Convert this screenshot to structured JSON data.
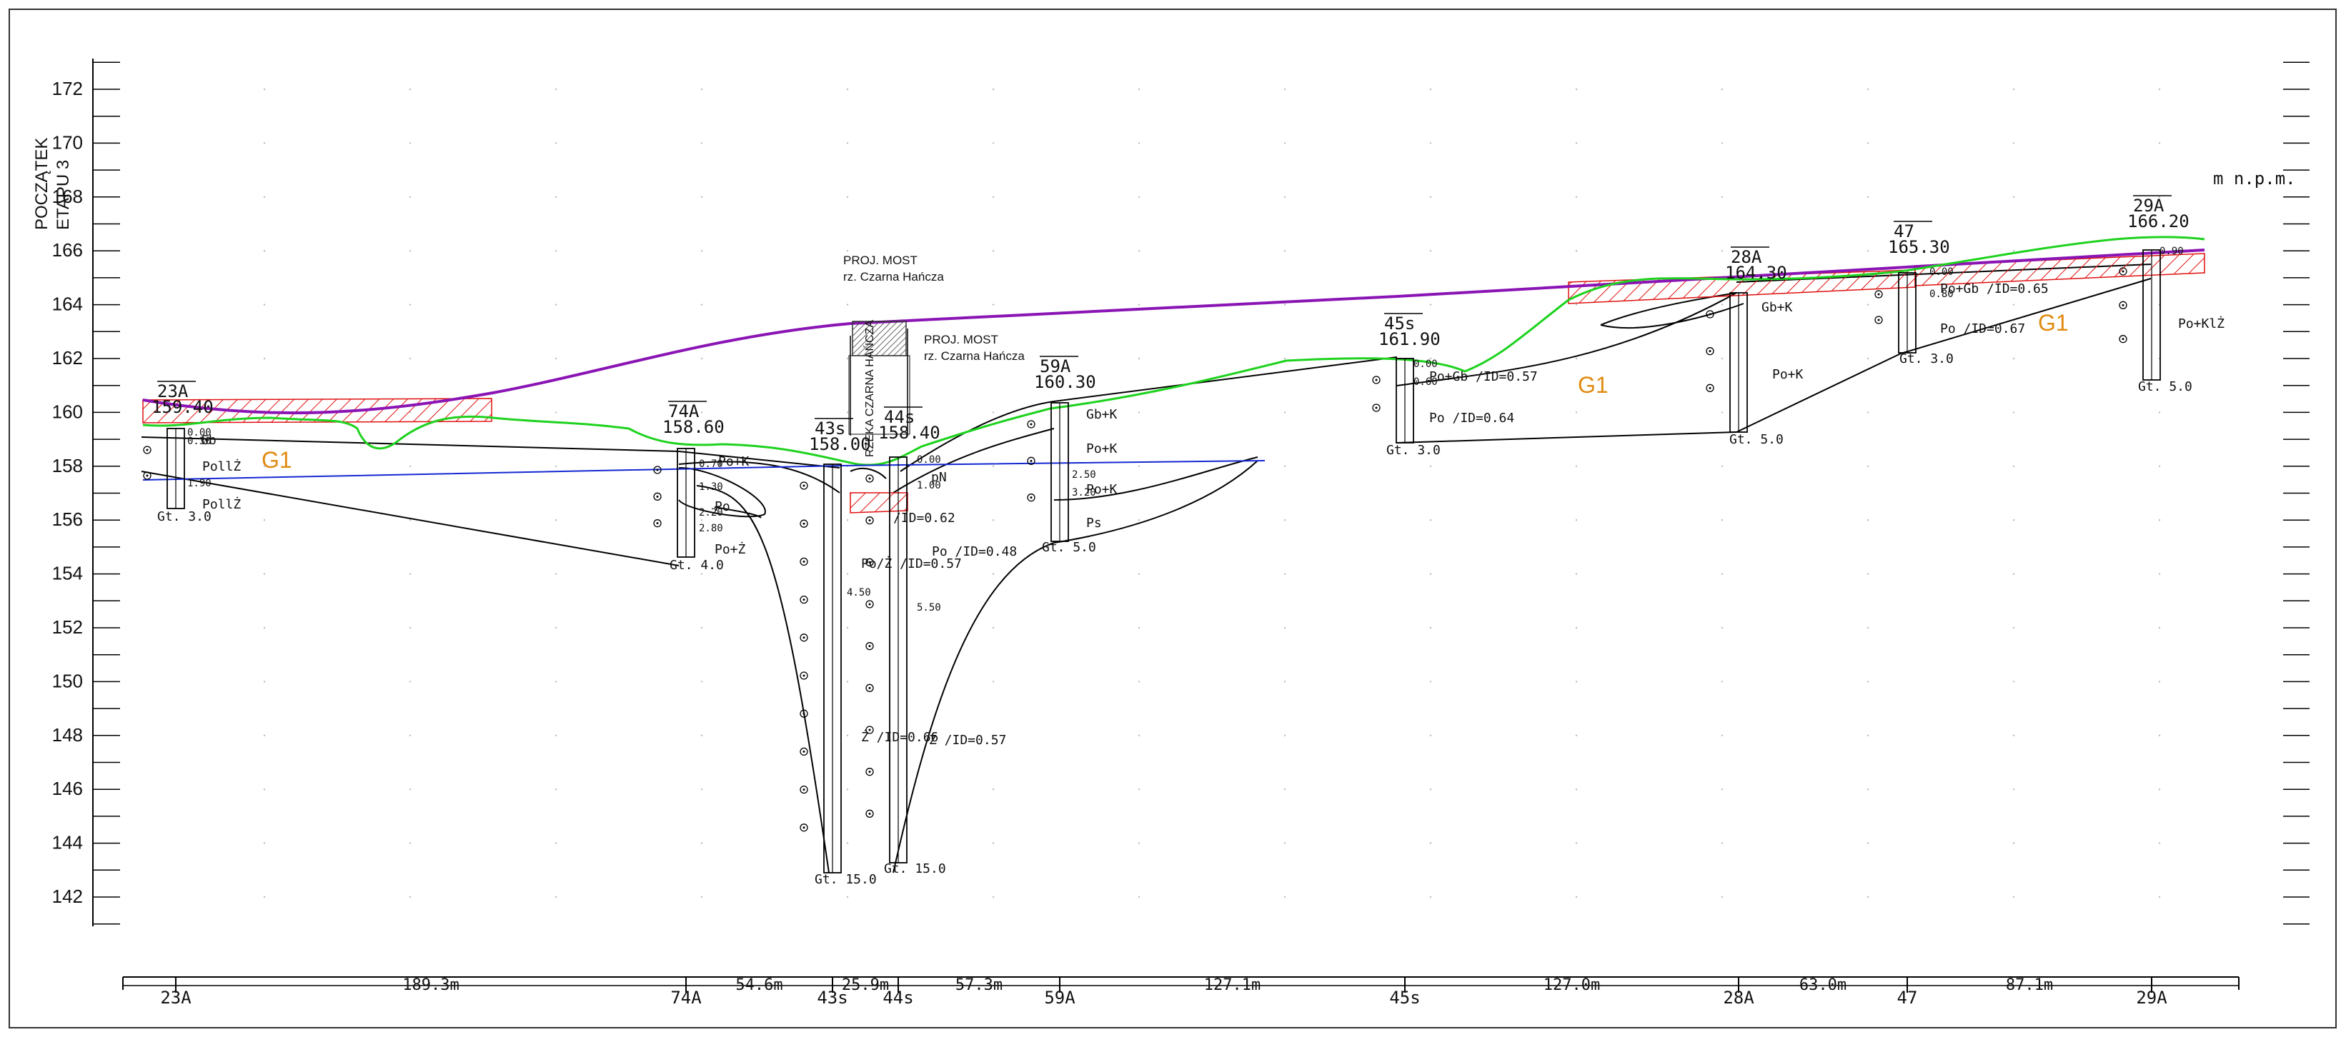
{
  "profile": {
    "title_lines": [
      "POCZĄTEK",
      "ETAPU 3"
    ],
    "unit_label": "m  n.p.m.",
    "y_axis_ticks": [
      "172",
      "170",
      "168",
      "166",
      "164",
      "162",
      "160",
      "158",
      "156",
      "154",
      "152",
      "150",
      "148",
      "146",
      "144",
      "142"
    ],
    "bridge_labels": [
      {
        "line1": "PROJ. MOST",
        "line2": "rz. Czarna Hańcza"
      },
      {
        "line1": "PROJ. MOST",
        "line2": "rz. Czarna Hańcza"
      }
    ],
    "river_label": "RZEKA CZARNA HAŃCZA",
    "zone_labels": [
      "G1",
      "G1",
      "G1"
    ],
    "boreholes": [
      {
        "id": "23A",
        "elev": "159.40",
        "bottom": "Gt.  3.0"
      },
      {
        "id": "74A",
        "elev": "158.60",
        "bottom": "Gt.  4.0"
      },
      {
        "id": "43s",
        "elev": "158.00",
        "bottom": "Gt.  15.0"
      },
      {
        "id": "44s",
        "elev": "158.40",
        "bottom": "Gt.  15.0"
      },
      {
        "id": "59A",
        "elev": "160.30",
        "bottom": "Gt.  5.0"
      },
      {
        "id": "45s",
        "elev": "161.90",
        "bottom": "Gt.  3.0"
      },
      {
        "id": "28A",
        "elev": "164.30",
        "bottom": "Gt.  5.0"
      },
      {
        "id": "47",
        "elev": "165.30",
        "bottom": "Gt.  3.0"
      },
      {
        "id": "29A",
        "elev": "166.20",
        "bottom": "Gt.  5.0"
      }
    ],
    "soil_labels": [
      "PollŻ",
      "PollŻ",
      "Gb",
      "Po+K",
      "Po",
      "Po+Ż",
      "Po/Ż /ID=0.57",
      "Po  /ID=0.48",
      "/ID=0.62",
      "Ż /ID=0.66",
      "Ż /ID=0.57",
      "Gb+K",
      "Po+K",
      "Po+K",
      "Ps",
      "Po+Gb /ID=0.57",
      "Po  /ID=0.64",
      "Gb+K",
      "Po+K",
      "Po+Gb  /ID=0.65",
      "Po  /ID=0.67",
      "Po+KlŻ",
      "pN"
    ],
    "depth_marks": [
      "0.00",
      "0.30",
      "1.90",
      "0.70",
      "1.30",
      "2.20",
      "2.80",
      "4.50",
      "0.00",
      "1.00",
      "5.50",
      "2.50",
      "3.20",
      "0.00",
      "0.60",
      "0.80",
      "0.00",
      "0.90"
    ],
    "distances": [
      "189.3m",
      "54.6m",
      "25.9m",
      "57.3m",
      "127.1m",
      "127.0m",
      "63.0m",
      "87.1m"
    ],
    "axis_station_labels": [
      "23A",
      "74A",
      "43s",
      "44s",
      "59A",
      "45s",
      "28A",
      "47",
      "29A"
    ],
    "colors": {
      "road_grade": "#8a14b4",
      "terrain": "#1ed21e",
      "water_table": "#1428d2",
      "hatch": "#e01010",
      "zone_label": "#e08a10"
    }
  }
}
